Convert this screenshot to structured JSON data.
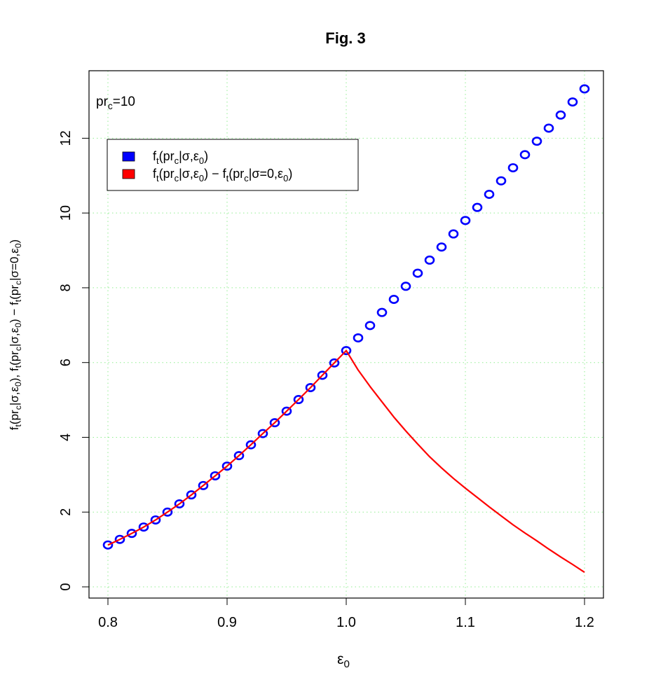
{
  "chart_data": {
    "type": "scatter",
    "title": "Fig. 3",
    "xlabel": {
      "base": "ε",
      "sub": "0"
    },
    "ylabel": {
      "parts": [
        [
          "f",
          ""
        ],
        [
          "t",
          "sub"
        ],
        [
          "(pr",
          ""
        ],
        [
          "c",
          "sub"
        ],
        [
          "|σ,ε",
          ""
        ],
        [
          "0",
          "sub"
        ],
        [
          "), f",
          ""
        ],
        [
          "t",
          "sub"
        ],
        [
          "(pr",
          ""
        ],
        [
          "c",
          "sub"
        ],
        [
          "|σ,ε",
          ""
        ],
        [
          "0",
          "sub"
        ],
        [
          ") − f",
          ""
        ],
        [
          "t",
          "sub"
        ],
        [
          "(pr",
          ""
        ],
        [
          "c",
          "sub"
        ],
        [
          "|σ=0,ε",
          ""
        ],
        [
          "0",
          "sub"
        ],
        [
          ")",
          ""
        ]
      ]
    },
    "xlim": [
      0.8,
      1.2
    ],
    "ylim": [
      0,
      13.3
    ],
    "xticks": [
      0.8,
      0.9,
      1.0,
      1.1,
      1.2
    ],
    "xtick_labels": [
      "0.8",
      "0.9",
      "1.0",
      "1.1",
      "1.2"
    ],
    "yticks": [
      0,
      2,
      4,
      6,
      8,
      10,
      12
    ],
    "ytick_labels": [
      "0",
      "2",
      "4",
      "6",
      "8",
      "10",
      "12"
    ],
    "grid": true,
    "grid_color": "#90ee90",
    "annotation": {
      "parts": [
        [
          "pr",
          ""
        ],
        [
          "c",
          "sub"
        ],
        [
          "=10",
          ""
        ]
      ]
    },
    "legend_position": "top-left",
    "series": [
      {
        "label_parts": [
          [
            "f",
            ""
          ],
          [
            "t",
            "sub"
          ],
          [
            "(pr",
            ""
          ],
          [
            "c",
            "sub"
          ],
          [
            "|σ,ε",
            ""
          ],
          [
            "0",
            "sub"
          ],
          [
            ")",
            ""
          ]
        ],
        "style": "points",
        "color": "#0000ff",
        "x": [
          0.8,
          0.81,
          0.82,
          0.83,
          0.84,
          0.85,
          0.86,
          0.87,
          0.88,
          0.89,
          0.9,
          0.91,
          0.92,
          0.93,
          0.94,
          0.95,
          0.96,
          0.97,
          0.98,
          0.99,
          1.0,
          1.01,
          1.02,
          1.03,
          1.04,
          1.05,
          1.06,
          1.07,
          1.08,
          1.09,
          1.1,
          1.11,
          1.12,
          1.13,
          1.14,
          1.15,
          1.16,
          1.17,
          1.18,
          1.19,
          1.2
        ],
        "y": [
          1.12,
          1.27,
          1.43,
          1.6,
          1.79,
          2.0,
          2.22,
          2.46,
          2.71,
          2.97,
          3.23,
          3.51,
          3.8,
          4.1,
          4.39,
          4.7,
          5.01,
          5.33,
          5.66,
          5.99,
          6.32,
          6.66,
          6.99,
          7.34,
          7.69,
          8.04,
          8.39,
          8.74,
          9.09,
          9.44,
          9.8,
          10.15,
          10.5,
          10.86,
          11.21,
          11.56,
          11.92,
          12.27,
          12.62,
          12.97,
          13.32
        ]
      },
      {
        "label_parts": [
          [
            "f",
            ""
          ],
          [
            "t",
            "sub"
          ],
          [
            "(pr",
            ""
          ],
          [
            "c",
            "sub"
          ],
          [
            "|σ,ε",
            ""
          ],
          [
            "0",
            "sub"
          ],
          [
            ") − f",
            ""
          ],
          [
            "t",
            "sub"
          ],
          [
            "(pr",
            ""
          ],
          [
            "c",
            "sub"
          ],
          [
            "|σ=0,ε",
            ""
          ],
          [
            "0",
            "sub"
          ],
          [
            ")",
            ""
          ]
        ],
        "style": "line",
        "color": "#ff0000",
        "x": [
          0.8,
          0.81,
          0.82,
          0.83,
          0.84,
          0.85,
          0.86,
          0.87,
          0.88,
          0.89,
          0.9,
          0.91,
          0.92,
          0.93,
          0.94,
          0.95,
          0.96,
          0.97,
          0.98,
          0.99,
          1.0,
          1.01,
          1.02,
          1.03,
          1.04,
          1.05,
          1.06,
          1.07,
          1.08,
          1.09,
          1.1,
          1.11,
          1.12,
          1.13,
          1.14,
          1.15,
          1.16,
          1.17,
          1.18,
          1.19,
          1.2
        ],
        "y": [
          1.12,
          1.27,
          1.43,
          1.6,
          1.79,
          2.0,
          2.22,
          2.46,
          2.71,
          2.97,
          3.23,
          3.51,
          3.8,
          4.1,
          4.39,
          4.7,
          5.01,
          5.33,
          5.66,
          5.99,
          6.32,
          5.8,
          5.36,
          4.95,
          4.54,
          4.17,
          3.82,
          3.48,
          3.18,
          2.9,
          2.64,
          2.39,
          2.14,
          1.9,
          1.66,
          1.44,
          1.23,
          1.01,
          0.8,
          0.6,
          0.39
        ]
      }
    ]
  }
}
